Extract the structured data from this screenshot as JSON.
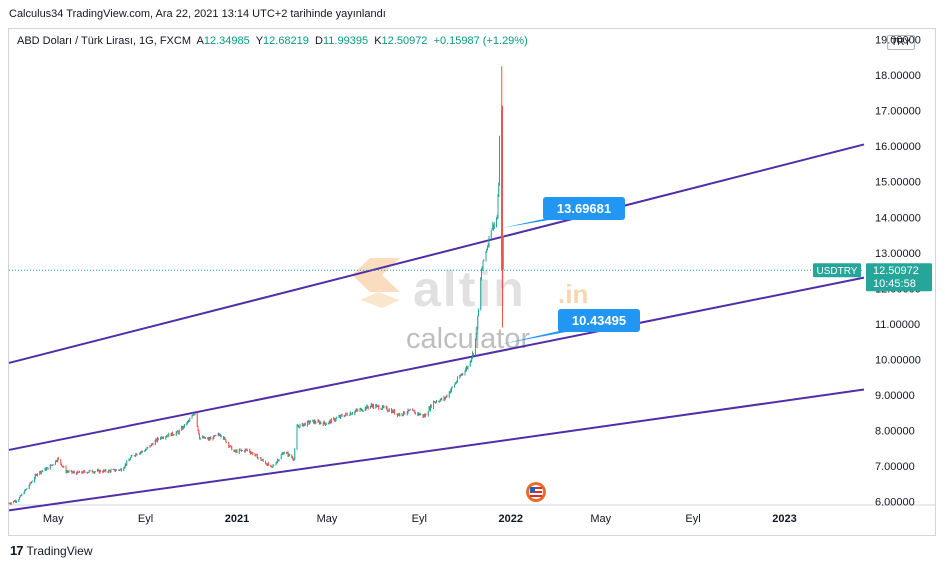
{
  "published": "Calculus34 TradingView.com, Ara 22, 2021 13:14 UTC+2 tarihinde yayınlandı",
  "legend": {
    "symbol": "ABD Doları / Türk Lirası, 1G, FXCM",
    "open_label": "A",
    "open": "12.34985",
    "high_label": "Y",
    "high": "12.68219",
    "low_label": "D",
    "low": "11.99395",
    "close_label": "K",
    "close": "12.50972",
    "change": "+0.15987 (+1.29%)"
  },
  "currency": "TRY",
  "footer": "TradingView",
  "watermark": {
    "brand": "altin",
    "tld": ".in",
    "sub": "calculator"
  },
  "colors": {
    "up": "#26a69a",
    "down": "#ef5350",
    "channel": "#512da8",
    "callout": "#2196f3",
    "price_tag": "#26a69a",
    "bg": "#ffffff"
  },
  "chart_data": {
    "type": "candlestick",
    "symbol": "USDTRY",
    "y_ticks": [
      "6.00000",
      "7.00000",
      "8.00000",
      "9.00000",
      "10.00000",
      "11.00000",
      "12.00000",
      "13.00000",
      "14.00000",
      "15.00000",
      "16.00000",
      "17.00000",
      "18.00000",
      "19.00000"
    ],
    "ylim": [
      5.9,
      19.3
    ],
    "x_ticks": [
      "May",
      "Eyl",
      "2021",
      "May",
      "Eyl",
      "2022",
      "May",
      "Eyl",
      "2023"
    ],
    "x_tick_dates": [
      "2020-05-01",
      "2020-09-01",
      "2021-01-01",
      "2021-05-01",
      "2021-09-01",
      "2022-01-01",
      "2022-05-01",
      "2022-09-01",
      "2023-01-01"
    ],
    "xlim": [
      "2020-03-03",
      "2023-04-17"
    ],
    "last_price": "12.50972",
    "countdown": "10:45:58",
    "price_path": [
      [
        "2020-03-03",
        5.95
      ],
      [
        "2020-03-15",
        6.05
      ],
      [
        "2020-03-28",
        6.4
      ],
      [
        "2020-04-10",
        6.8
      ],
      [
        "2020-04-25",
        6.95
      ],
      [
        "2020-05-07",
        7.2
      ],
      [
        "2020-05-18",
        6.85
      ],
      [
        "2020-06-01",
        6.8
      ],
      [
        "2020-06-20",
        6.85
      ],
      [
        "2020-07-10",
        6.85
      ],
      [
        "2020-07-31",
        6.9
      ],
      [
        "2020-08-15",
        7.3
      ],
      [
        "2020-09-01",
        7.45
      ],
      [
        "2020-09-20",
        7.8
      ],
      [
        "2020-10-15",
        7.95
      ],
      [
        "2020-10-30",
        8.3
      ],
      [
        "2020-11-06",
        8.5
      ],
      [
        "2020-11-12",
        7.8
      ],
      [
        "2020-11-25",
        7.75
      ],
      [
        "2020-12-10",
        7.9
      ],
      [
        "2020-12-28",
        7.4
      ],
      [
        "2021-01-15",
        7.45
      ],
      [
        "2021-02-01",
        7.2
      ],
      [
        "2021-02-16",
        6.95
      ],
      [
        "2021-03-05",
        7.4
      ],
      [
        "2021-03-18",
        7.2
      ],
      [
        "2021-03-22",
        8.1
      ],
      [
        "2021-04-10",
        8.25
      ],
      [
        "2021-04-30",
        8.2
      ],
      [
        "2021-05-20",
        8.4
      ],
      [
        "2021-06-10",
        8.55
      ],
      [
        "2021-06-30",
        8.7
      ],
      [
        "2021-07-20",
        8.6
      ],
      [
        "2021-08-05",
        8.45
      ],
      [
        "2021-08-20",
        8.55
      ],
      [
        "2021-09-08",
        8.4
      ],
      [
        "2021-09-20",
        8.8
      ],
      [
        "2021-10-05",
        8.9
      ],
      [
        "2021-10-15",
        9.2
      ],
      [
        "2021-10-28",
        9.6
      ],
      [
        "2021-11-05",
        9.8
      ],
      [
        "2021-11-12",
        10.2
      ],
      [
        "2021-11-16",
        10.7
      ],
      [
        "2021-11-19",
        11.4
      ],
      [
        "2021-11-23",
        12.5
      ],
      [
        "2021-11-26",
        12.8
      ],
      [
        "2021-12-01",
        13.2
      ],
      [
        "2021-12-06",
        13.7
      ],
      [
        "2021-12-10",
        13.8
      ],
      [
        "2021-12-14",
        14.0
      ],
      [
        "2021-12-16",
        15.0
      ],
      [
        "2021-12-17",
        16.2
      ],
      [
        "2021-12-20",
        17.0
      ],
      [
        "2021-12-21",
        13.5
      ],
      [
        "2021-12-22",
        12.51
      ]
    ],
    "channel_lines": [
      {
        "name": "upper",
        "from": [
          "2020-03-03",
          9.9
        ],
        "to": [
          "2023-04-17",
          16.05
        ]
      },
      {
        "name": "middle",
        "from": [
          "2020-03-03",
          7.45
        ],
        "to": [
          "2023-04-17",
          12.3
        ]
      },
      {
        "name": "lower",
        "from": [
          "2020-03-03",
          5.75
        ],
        "to": [
          "2023-04-17",
          9.15
        ]
      }
    ],
    "annotations": [
      {
        "text": "13.69681",
        "point": [
          "2021-12-20",
          13.7
        ]
      },
      {
        "text": "10.43495",
        "point": [
          "2021-12-20",
          10.43
        ]
      }
    ]
  }
}
